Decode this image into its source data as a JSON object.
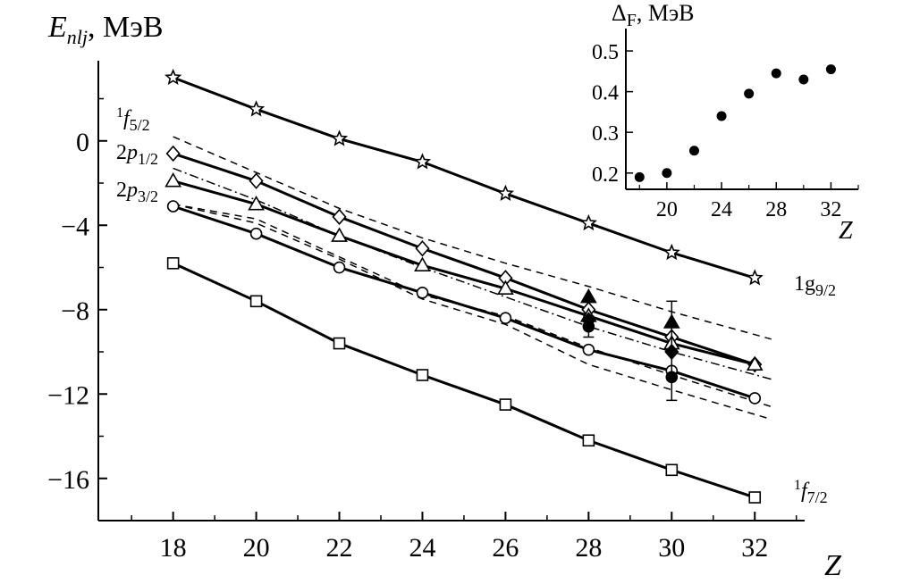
{
  "main": {
    "ylabel": "E_nlj, МэВ",
    "xlabel": "Z",
    "xticks": [
      18,
      20,
      22,
      24,
      26,
      28,
      30,
      32
    ],
    "yticks": [
      0,
      -4,
      -8,
      -12,
      -16
    ],
    "ytick_labels": [
      "0",
      "−4",
      "−8",
      "−12",
      "−16"
    ]
  },
  "inset": {
    "ylabel": "Δ_F, МэВ",
    "xlabel": "Z",
    "xticks": [
      20,
      24,
      28,
      32
    ],
    "yticks": [
      0.2,
      0.3,
      0.4,
      0.5
    ],
    "ytick_labels": [
      "0.2",
      "0.3",
      "0.4",
      "0.5"
    ]
  },
  "chart_data": [
    {
      "type": "line",
      "xlabel": "Z",
      "ylabel": "E_nlj, МэВ",
      "xlim": [
        16.2,
        33.2
      ],
      "ylim": [
        -18.0,
        3.8
      ],
      "series": [
        {
          "name": "1g9/2",
          "marker": "star",
          "x": [
            18,
            20,
            22,
            24,
            26,
            28,
            30,
            32
          ],
          "y": [
            3.0,
            1.5,
            0.1,
            -1.0,
            -2.5,
            -3.9,
            -5.3,
            -6.5
          ]
        },
        {
          "name": "1f5/2",
          "marker": "diamond",
          "x": [
            18,
            20,
            22,
            24,
            26,
            28,
            30,
            32
          ],
          "y": [
            -0.6,
            -1.9,
            -3.6,
            -5.1,
            -6.5,
            -8.0,
            -9.3,
            -10.6
          ]
        },
        {
          "name": "2p1/2",
          "marker": "triangle",
          "x": [
            18,
            20,
            22,
            24,
            26,
            28,
            30,
            32
          ],
          "y": [
            -1.9,
            -3.0,
            -4.5,
            -5.9,
            -7.0,
            -8.3,
            -9.6,
            -10.6
          ]
        },
        {
          "name": "2p3/2",
          "marker": "circle",
          "x": [
            18,
            20,
            22,
            24,
            26,
            28,
            30,
            32
          ],
          "y": [
            -3.1,
            -4.4,
            -6.0,
            -7.2,
            -8.4,
            -9.9,
            -10.9,
            -12.2
          ]
        },
        {
          "name": "1f7/2",
          "marker": "square",
          "x": [
            18,
            20,
            22,
            24,
            26,
            28,
            30,
            32
          ],
          "y": [
            -5.8,
            -7.6,
            -9.6,
            -11.1,
            -12.5,
            -14.2,
            -15.6,
            -16.9
          ]
        }
      ],
      "dashed_lines": [
        {
          "x": [
            18,
            20,
            22,
            24,
            26,
            28,
            30,
            32.4
          ],
          "y": [
            0.2,
            -1.5,
            -3.2,
            -4.6,
            -5.8,
            -6.9,
            -8.1,
            -9.4
          ]
        },
        {
          "x": [
            18,
            20,
            22,
            24,
            26,
            28,
            30,
            32.4
          ],
          "y": [
            -3.0,
            -3.9,
            -5.6,
            -7.5,
            -8.7,
            -10.6,
            -11.8,
            -13.2
          ]
        },
        {
          "x": [
            18,
            20,
            22,
            24,
            26,
            28,
            30,
            32.4
          ],
          "y": [
            -3.0,
            -3.7,
            -5.5,
            -7.3,
            -8.3,
            -9.8,
            -11.1,
            -12.6
          ]
        }
      ],
      "dashdot_lines": [
        {
          "x": [
            18,
            20,
            22,
            24,
            26,
            28,
            30,
            32.4
          ],
          "y": [
            -1.3,
            -2.8,
            -4.5,
            -6.0,
            -7.4,
            -8.8,
            -10.0,
            -11.3
          ]
        }
      ],
      "experimental_points": [
        {
          "marker": "triangle-filled",
          "x": 28,
          "y": -7.4
        },
        {
          "marker": "diamond-filled",
          "x": 28,
          "y": -8.5
        },
        {
          "marker": "circle-filled",
          "x": 28,
          "y": -8.8
        },
        {
          "marker": "triangle-filled",
          "x": 30,
          "y": -8.6
        },
        {
          "marker": "diamond-filled",
          "x": 30,
          "y": -10.0
        },
        {
          "marker": "circle-filled",
          "x": 30,
          "y": -11.2
        }
      ],
      "error_bars": [
        {
          "x": 28,
          "low": -9.3,
          "high": -8.3
        },
        {
          "x": 30,
          "low": -12.3,
          "high": -7.6
        }
      ]
    },
    {
      "type": "scatter",
      "xlabel": "Z",
      "ylabel": "Δ_F, МэВ",
      "xlim": [
        17.0,
        34.0
      ],
      "ylim": [
        0.16,
        0.555
      ],
      "x": [
        18,
        20,
        22,
        24,
        26,
        28,
        30,
        32
      ],
      "y": [
        0.19,
        0.2,
        0.255,
        0.34,
        0.395,
        0.445,
        0.43,
        0.455
      ]
    }
  ]
}
